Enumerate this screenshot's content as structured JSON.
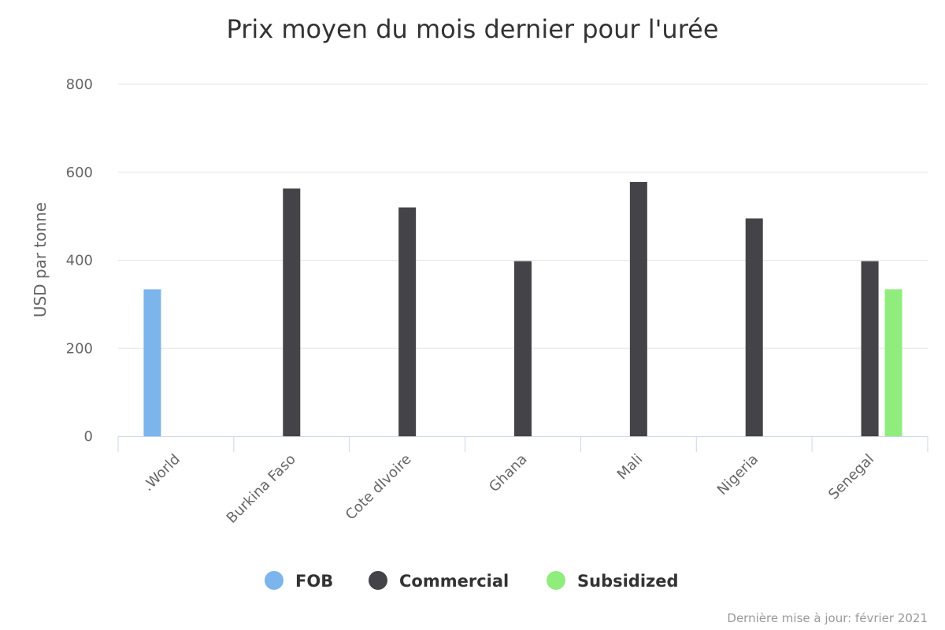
{
  "chart_data": {
    "type": "bar",
    "title": "Prix moyen du mois dernier pour l'urée",
    "xlabel": "",
    "ylabel": "USD par tonne",
    "ylim": [
      0,
      800
    ],
    "yticks": [
      0,
      200,
      400,
      600,
      800
    ],
    "grid": true,
    "legend_position": "bottom-center",
    "categories": [
      ".World",
      "Burkina Faso",
      "Cote dIvoire",
      "Ghana",
      "Mali",
      "Nigeria",
      "Senegal"
    ],
    "series": [
      {
        "name": "FOB",
        "color": "#7cb5ec",
        "values": [
          334,
          null,
          null,
          null,
          null,
          null,
          null
        ]
      },
      {
        "name": "Commercial",
        "color": "#434348",
        "values": [
          null,
          563,
          520,
          398,
          578,
          495,
          398
        ]
      },
      {
        "name": "Subsidized",
        "color": "#90ed7d",
        "values": [
          null,
          null,
          null,
          null,
          null,
          null,
          334
        ]
      }
    ],
    "credit": "Dernière mise à jour: février 2021"
  }
}
